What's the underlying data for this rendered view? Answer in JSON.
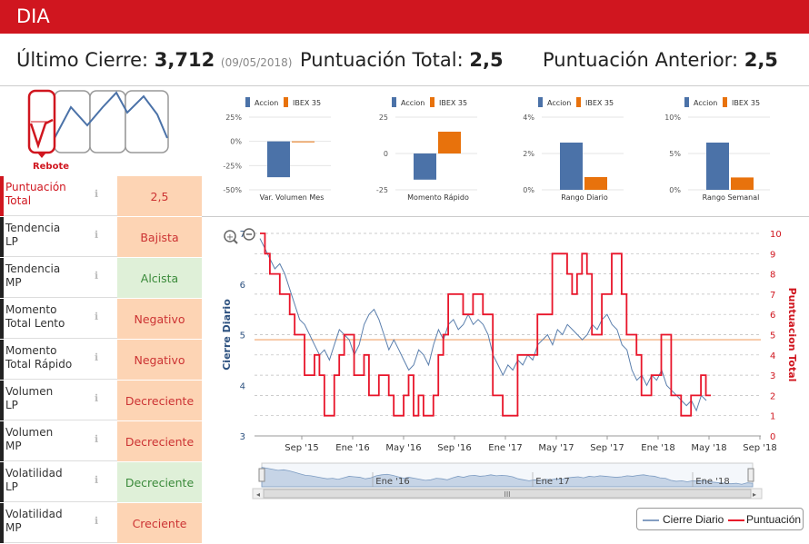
{
  "header": {
    "title": "DIA"
  },
  "summary": {
    "last_close_label": "Último Cierre:",
    "last_close_value": "3,712",
    "last_close_date": "(09/05/2018)",
    "total_score_label": "Puntuación Total:",
    "total_score_value": "2,5",
    "prev_score_label": "Puntuación Anterior:",
    "prev_score_value": "2,5"
  },
  "pattern": {
    "label": "Rebote"
  },
  "colors": {
    "accent": "#d0161f",
    "accion": "#4b72a8",
    "ibex": "#e8720c",
    "close_line": "#5b7fad",
    "score_line": "#e8152a",
    "avg_line": "#f2a46a"
  },
  "sidebar": {
    "items": [
      {
        "label1": "Puntuación",
        "label2": "Total",
        "value": "2,5",
        "tone": "neu",
        "active": true
      },
      {
        "label1": "Tendencia",
        "label2": "LP",
        "value": "Bajista",
        "tone": "neg"
      },
      {
        "label1": "Tendencia",
        "label2": "MP",
        "value": "Alcista",
        "tone": "pos"
      },
      {
        "label1": "Momento",
        "label2": "Total Lento",
        "value": "Negativo",
        "tone": "neg"
      },
      {
        "label1": "Momento",
        "label2": "Total Rápido",
        "value": "Negativo",
        "tone": "neg"
      },
      {
        "label1": "Volumen",
        "label2": "LP",
        "value": "Decreciente",
        "tone": "neg"
      },
      {
        "label1": "Volumen",
        "label2": "MP",
        "value": "Decreciente",
        "tone": "neg"
      },
      {
        "label1": "Volatilidad",
        "label2": "LP",
        "value": "Decreciente",
        "tone": "pos"
      },
      {
        "label1": "Volatilidad",
        "label2": "MP",
        "value": "Creciente",
        "tone": "neg"
      }
    ]
  },
  "chart_data": [
    {
      "type": "bar",
      "legend": [
        "Accion",
        "IBEX 35"
      ],
      "title": "Var. Volumen Mes",
      "yticks": [
        "25%",
        "0%",
        "-25%",
        "-50%"
      ],
      "ylim": [
        -50,
        25
      ],
      "values": [
        -37,
        0
      ],
      "series": [
        {
          "name": "Accion"
        },
        {
          "name": "IBEX 35"
        }
      ]
    },
    {
      "type": "bar",
      "legend": [
        "Accion",
        "IBEX 35"
      ],
      "title": "Momento Rápido",
      "yticks": [
        "25",
        "0",
        "-25"
      ],
      "ylim": [
        -25,
        25
      ],
      "values": [
        -18,
        15
      ]
    },
    {
      "type": "bar",
      "legend": [
        "Accion",
        "IBEX 35"
      ],
      "title": "Rango Diario",
      "yticks": [
        "4%",
        "2%",
        "0%"
      ],
      "ylim": [
        0,
        4
      ],
      "values": [
        2.6,
        0.7
      ]
    },
    {
      "type": "bar",
      "legend": [
        "Accion",
        "IBEX 35"
      ],
      "title": "Rango Semanal",
      "yticks": [
        "10%",
        "5%",
        "0%"
      ],
      "ylim": [
        0,
        10
      ],
      "values": [
        6.5,
        1.7
      ]
    },
    {
      "type": "line",
      "ylabel": "Cierre Diario",
      "y2label": "Puntuacion Total",
      "yticks": [
        "7",
        "6",
        "5",
        "4",
        "3"
      ],
      "y2ticks": [
        "10",
        "9",
        "8",
        "7",
        "6",
        "5",
        "4",
        "3",
        "2",
        "1",
        "0"
      ],
      "xticks": [
        "Sep '15",
        "Ene '16",
        "May '16",
        "Sep '16",
        "Ene '17",
        "May '17",
        "Sep '17",
        "Ene '18",
        "May '18",
        "Sep '18"
      ],
      "navigator_ticks": [
        "Ene '16",
        "Ene '17",
        "Ene '18"
      ],
      "ylim": [
        3,
        7
      ],
      "y2lim": [
        0,
        10
      ],
      "reference_line": 4.9,
      "close": [
        6.9,
        6.7,
        6.5,
        6.3,
        6.4,
        6.2,
        5.9,
        5.6,
        5.3,
        5.2,
        5.0,
        4.8,
        4.6,
        4.7,
        4.5,
        4.8,
        5.1,
        5.0,
        4.9,
        4.6,
        4.8,
        5.2,
        5.4,
        5.5,
        5.3,
        5.0,
        4.7,
        4.9,
        4.7,
        4.5,
        4.3,
        4.4,
        4.7,
        4.6,
        4.4,
        4.8,
        5.1,
        4.9,
        5.2,
        5.3,
        5.1,
        5.2,
        5.4,
        5.2,
        5.3,
        5.2,
        5.0,
        4.6,
        4.4,
        4.2,
        4.4,
        4.3,
        4.5,
        4.4,
        4.6,
        4.5,
        4.8,
        4.9,
        5.0,
        4.8,
        5.1,
        5.0,
        5.2,
        5.1,
        5.0,
        4.9,
        5.0,
        5.2,
        5.1,
        5.3,
        5.4,
        5.2,
        5.1,
        4.8,
        4.7,
        4.3,
        4.1,
        4.2,
        4.0,
        4.2,
        4.1,
        4.3,
        4.0,
        3.9,
        3.8,
        3.7,
        3.6,
        3.7,
        3.5,
        3.8,
        3.7
      ],
      "score": [
        10,
        9,
        8,
        8,
        7,
        7,
        6,
        5,
        5,
        3,
        3,
        4,
        3,
        1,
        1,
        3,
        4,
        5,
        5,
        3,
        3,
        4,
        2,
        2,
        3,
        3,
        2,
        1,
        1,
        2,
        3,
        1,
        2,
        1,
        1,
        2,
        4,
        5,
        7,
        7,
        7,
        6,
        6,
        7,
        7,
        6,
        6,
        2,
        2,
        1,
        1,
        1,
        4,
        4,
        4,
        4,
        6,
        6,
        6,
        9,
        9,
        9,
        8,
        7,
        8,
        9,
        8,
        5,
        5,
        7,
        7,
        9,
        9,
        7,
        5,
        5,
        4,
        2,
        2,
        3,
        3,
        5,
        5,
        2,
        2,
        1,
        1,
        2,
        2,
        3,
        2
      ]
    }
  ],
  "navigator": {
    "scroll_label": "III"
  },
  "legend": {
    "close": "Cierre Diario",
    "score": "Puntuación"
  }
}
